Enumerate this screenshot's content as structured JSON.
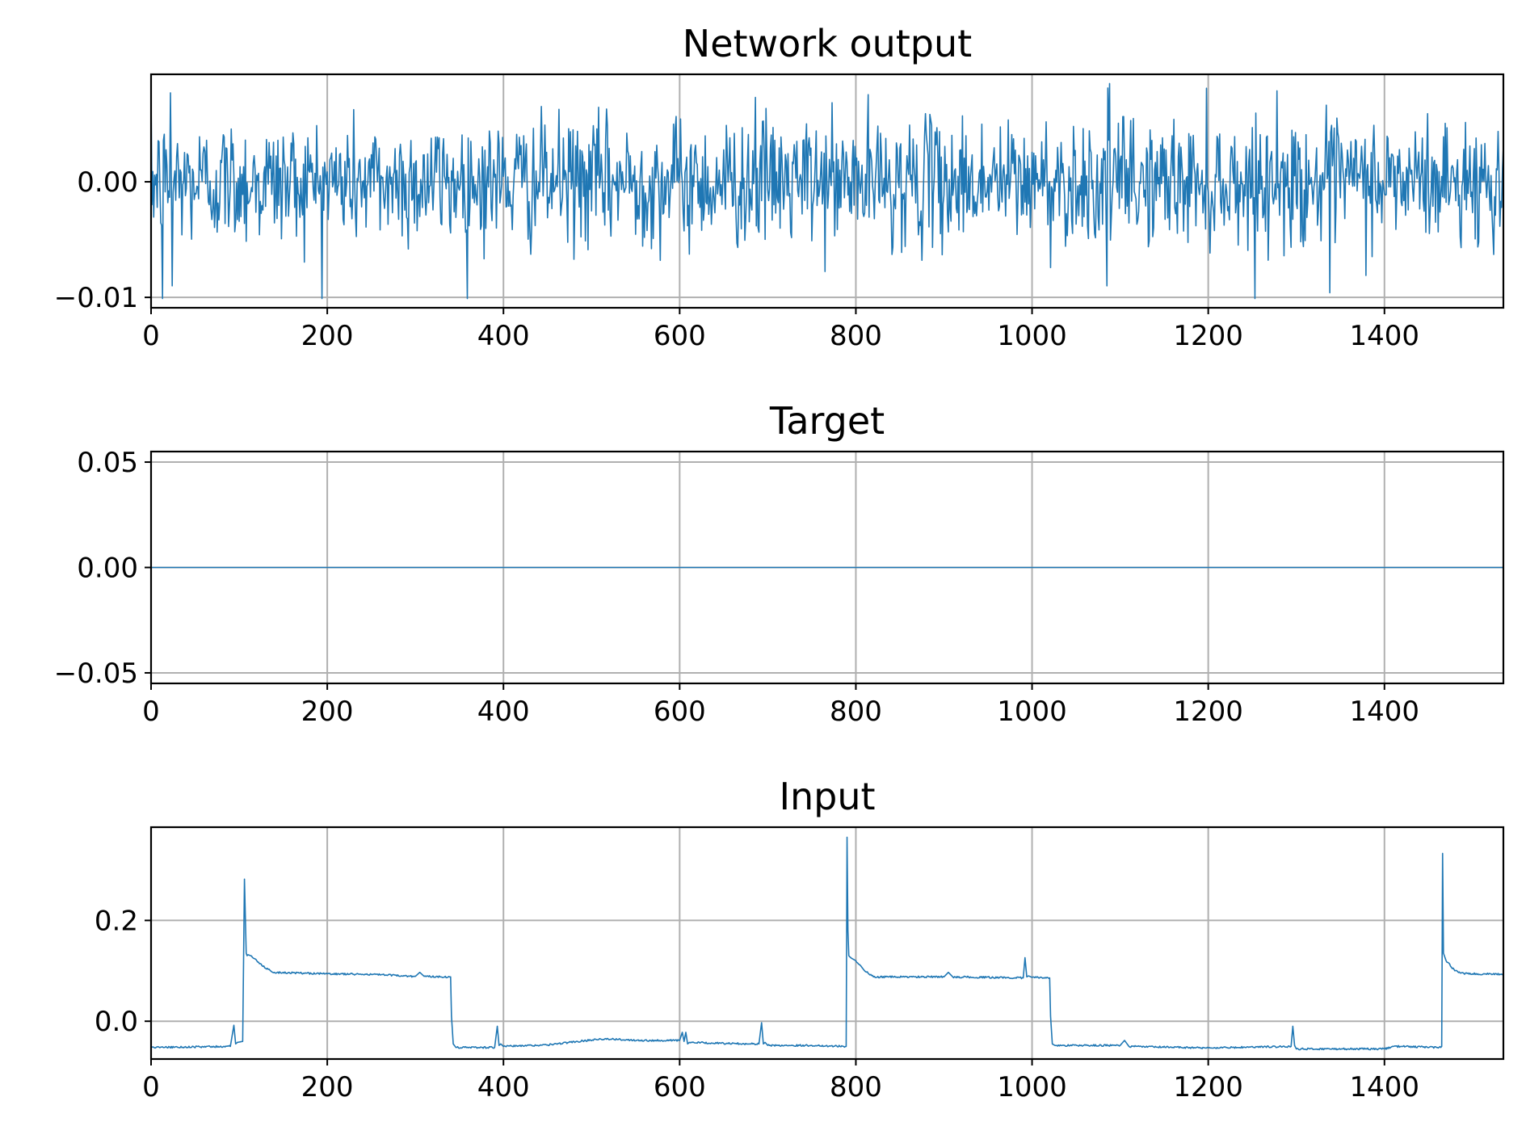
{
  "figure": {
    "line_color": "#1f77b4",
    "grid_color": "#b0b0b0"
  },
  "chart_data": [
    {
      "type": "line",
      "title": "Network output",
      "xlabel": "",
      "ylabel": "",
      "xlim": [
        0,
        1535
      ],
      "ylim": [
        -0.0109,
        0.0093
      ],
      "grid": true,
      "xticks": [
        0,
        200,
        400,
        600,
        800,
        1000,
        1200,
        1400
      ],
      "xtick_labels": [
        "0",
        "200",
        "400",
        "600",
        "800",
        "1000",
        "1200",
        "1400"
      ],
      "yticks": [
        -0.01,
        0.0
      ],
      "ytick_labels": [
        "−0.01",
        "0.00"
      ],
      "series": [
        {
          "style": "noise",
          "n_points": 1536,
          "mean": 0.0,
          "std": 0.0027,
          "min": -0.0101,
          "max": 0.0085,
          "peaks": [
            [
              13,
              -0.0101
            ],
            [
              22,
              0.0077
            ],
            [
              24,
              -0.009
            ],
            [
              686,
              0.0073
            ],
            [
              1085,
              -0.009
            ],
            [
              1088,
              0.0085
            ],
            [
              1338,
              -0.0096
            ]
          ]
        }
      ]
    },
    {
      "type": "line",
      "title": "Target",
      "xlabel": "",
      "ylabel": "",
      "xlim": [
        0,
        1535
      ],
      "ylim": [
        -0.055,
        0.055
      ],
      "grid": true,
      "xticks": [
        0,
        200,
        400,
        600,
        800,
        1000,
        1200,
        1400
      ],
      "xtick_labels": [
        "0",
        "200",
        "400",
        "600",
        "800",
        "1000",
        "1200",
        "1400"
      ],
      "yticks": [
        -0.05,
        0.0,
        0.05
      ],
      "ytick_labels": [
        "−0.05",
        "0.00",
        "0.05"
      ],
      "series": [
        {
          "style": "constant",
          "x": [
            0,
            1535
          ],
          "y": [
            0.0,
            0.0
          ]
        }
      ]
    },
    {
      "type": "line",
      "title": "Input",
      "xlabel": "",
      "ylabel": "",
      "xlim": [
        0,
        1535
      ],
      "ylim": [
        -0.075,
        0.385
      ],
      "grid": true,
      "xticks": [
        0,
        200,
        400,
        600,
        800,
        1000,
        1200,
        1400
      ],
      "xtick_labels": [
        "0",
        "200",
        "400",
        "600",
        "800",
        "1000",
        "1200",
        "1400"
      ],
      "yticks": [
        0.0,
        0.2
      ],
      "ytick_labels": [
        "0.0",
        "0.2"
      ],
      "series": [
        {
          "style": "piecewise",
          "x": [
            0,
            90,
            94,
            96,
            98,
            104,
            106,
            108,
            109,
            110,
            113,
            120,
            130,
            140,
            200,
            250,
            300,
            305,
            310,
            340,
            341,
            343,
            346,
            390,
            393,
            395,
            397,
            400,
            450,
            510,
            560,
            600,
            603,
            605,
            607,
            609,
            611,
            650,
            690,
            693,
            695,
            697,
            700,
            750,
            789,
            790,
            791,
            792,
            793,
            795,
            800,
            810,
            820,
            900,
            905,
            910,
            990,
            992,
            994,
            996,
            1000,
            1020,
            1021,
            1023,
            1026,
            1100,
            1105,
            1110,
            1200,
            1294,
            1296,
            1298,
            1300,
            1400,
            1410,
            1420,
            1464,
            1465,
            1466,
            1467,
            1468,
            1470,
            1480,
            1490,
            1500,
            1535
          ],
          "y": [
            -0.052,
            -0.05,
            -0.008,
            -0.045,
            -0.042,
            -0.04,
            0.282,
            0.135,
            0.13,
            0.132,
            0.13,
            0.12,
            0.105,
            0.097,
            0.094,
            0.093,
            0.089,
            0.097,
            0.089,
            0.088,
            0.01,
            -0.045,
            -0.052,
            -0.052,
            -0.01,
            -0.048,
            -0.045,
            -0.05,
            -0.047,
            -0.035,
            -0.038,
            -0.038,
            -0.022,
            -0.04,
            -0.022,
            -0.045,
            -0.042,
            -0.044,
            -0.045,
            -0.003,
            -0.045,
            -0.042,
            -0.048,
            -0.048,
            -0.05,
            0.365,
            0.18,
            0.13,
            0.128,
            0.125,
            0.12,
            0.1,
            0.088,
            0.088,
            0.097,
            0.088,
            0.086,
            0.126,
            0.088,
            0.09,
            0.087,
            0.086,
            0.01,
            -0.045,
            -0.048,
            -0.048,
            -0.038,
            -0.05,
            -0.053,
            -0.05,
            -0.01,
            -0.048,
            -0.055,
            -0.055,
            -0.05,
            -0.05,
            -0.052,
            -0.05,
            0.333,
            0.135,
            0.13,
            0.12,
            0.1,
            0.095,
            0.094,
            0.093
          ]
        }
      ]
    }
  ]
}
